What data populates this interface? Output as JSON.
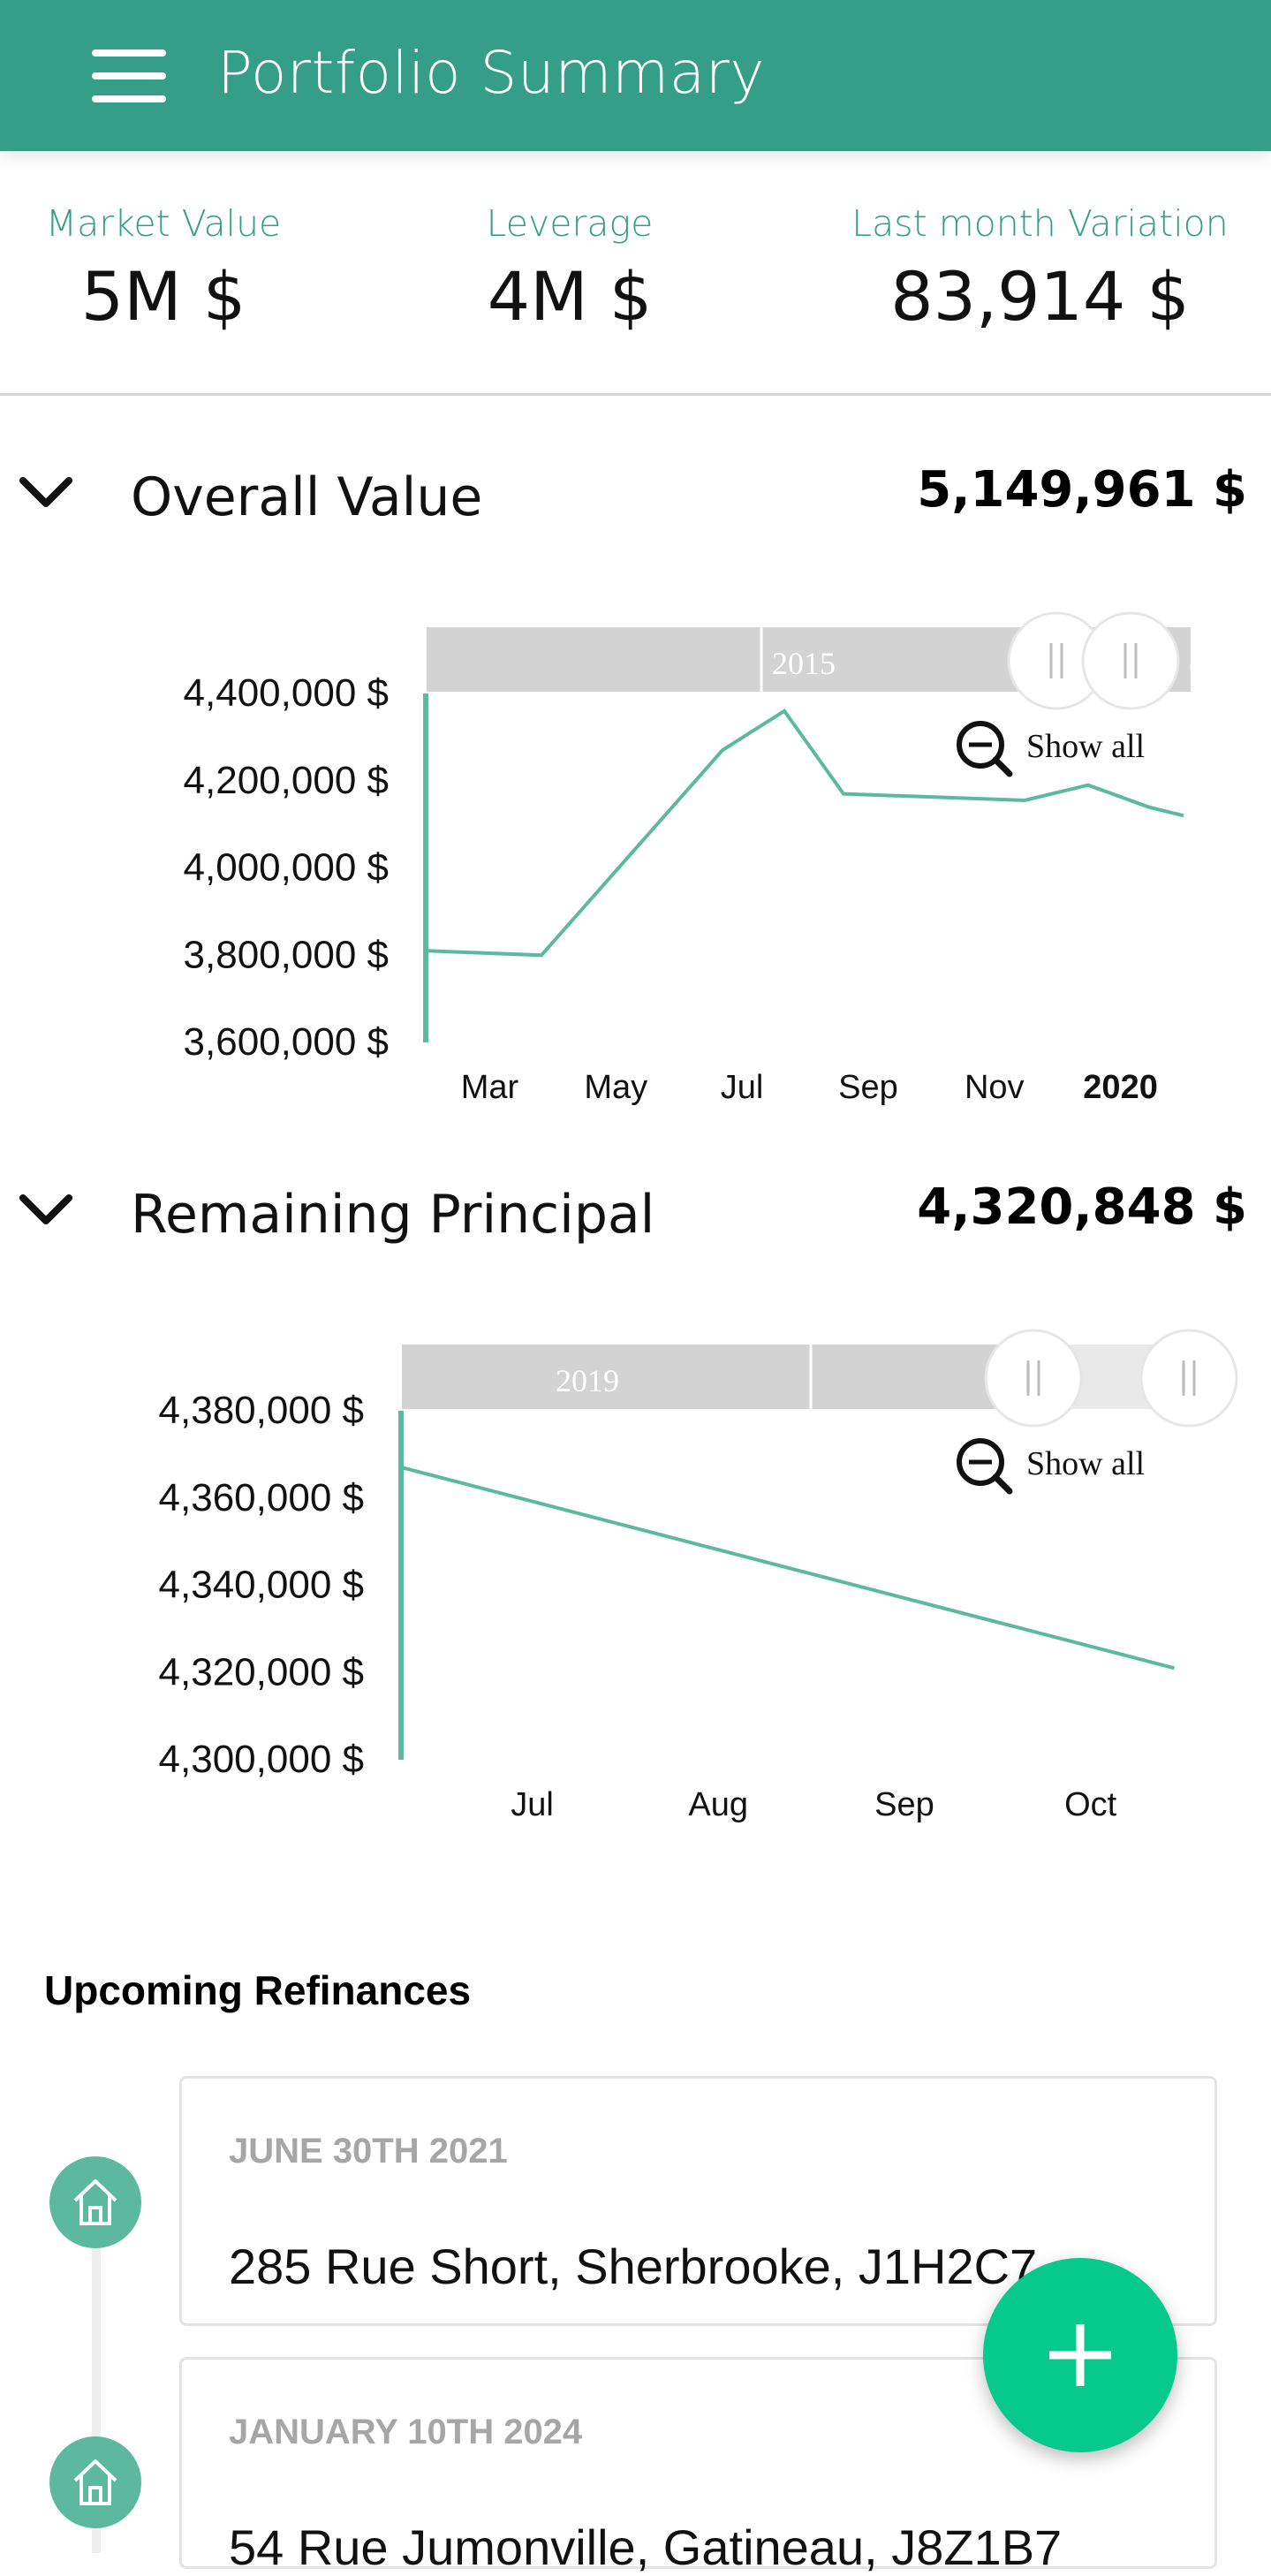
{
  "header": {
    "title": "Portfolio Summary",
    "menu_icon": "hamburger-menu-icon"
  },
  "kpis": [
    {
      "label": "Market Value",
      "value": "5M $"
    },
    {
      "label": "Leverage",
      "value": "4M $"
    },
    {
      "label": "Last month Variation",
      "value": "83,914 $"
    }
  ],
  "overall": {
    "title": "Overall Value",
    "value": "5,149,961 $",
    "navigator_label": "2015",
    "show_all": "Show all"
  },
  "principal": {
    "title": "Remaining Principal",
    "value": "4,320,848 $",
    "navigator_label": "2019",
    "show_all": "Show all"
  },
  "colors": {
    "accent": "#359e86",
    "line": "#5db8a0",
    "fab": "#08c98c",
    "navigator": "#d3d3d3"
  },
  "chart_data": [
    {
      "type": "line",
      "title": "Overall Value",
      "x_ticks": [
        "Mar",
        "May",
        "Jul",
        "Sep",
        "Nov",
        "2020"
      ],
      "x_tick_bold": [
        false,
        false,
        false,
        false,
        false,
        true
      ],
      "y_ticks": [
        "4,400,000 $",
        "4,200,000 $",
        "4,000,000 $",
        "3,800,000 $",
        "3,600,000 $"
      ],
      "ylim": [
        3600000,
        4400000
      ],
      "x": [
        "Feb",
        "Mar",
        "Jun",
        "Jul",
        "Aug",
        "Nov",
        "Dec",
        "Jan",
        "Feb"
      ],
      "values": [
        3810000,
        3800000,
        4270000,
        4360000,
        4170000,
        4155000,
        4190000,
        4140000,
        4120000
      ],
      "grid": false
    },
    {
      "type": "line",
      "title": "Remaining Principal",
      "x_ticks": [
        "Jul",
        "Aug",
        "Sep",
        "Oct"
      ],
      "x_tick_bold": [
        false,
        false,
        false,
        false
      ],
      "y_ticks": [
        "4,380,000 $",
        "4,360,000 $",
        "4,340,000 $",
        "4,320,000 $",
        "4,300,000 $"
      ],
      "ylim": [
        4300000,
        4380000
      ],
      "x": [
        "Jun",
        "Oct"
      ],
      "values": [
        4367000,
        4321000
      ],
      "grid": false
    }
  ],
  "refinances": {
    "title": "Upcoming Refinances",
    "items": [
      {
        "date": "JUNE 30TH 2021",
        "address": "285 Rue Short, Sherbrooke, J1H2C7",
        "icon": "home-icon"
      },
      {
        "date": "JANUARY 10TH 2024",
        "address": "54 Rue Jumonville, Gatineau, J8Z1B7",
        "icon": "home-icon"
      }
    ]
  },
  "fab": {
    "icon": "plus-icon"
  }
}
